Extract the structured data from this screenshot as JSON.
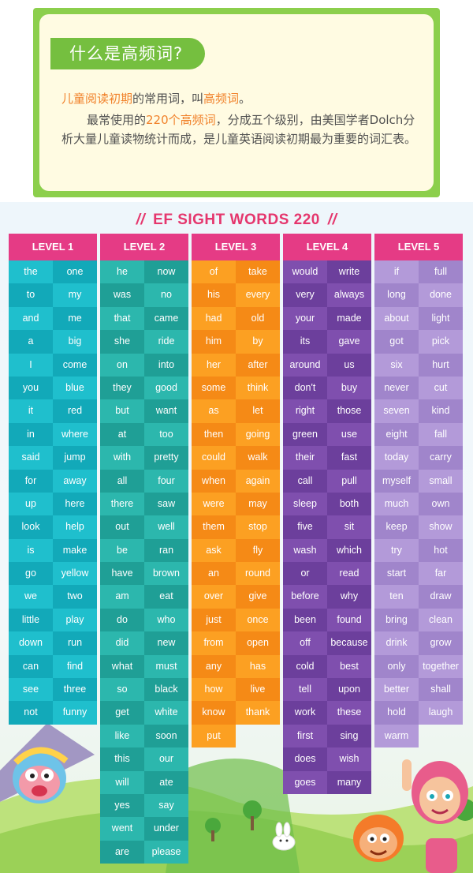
{
  "info": {
    "title": "什么是高频词?",
    "p1": {
      "a": "儿童阅读初期",
      "b": "的常用词，叫",
      "c": "高频词",
      "d": "。"
    },
    "p2": {
      "a": "最常使用的",
      "b": "220个高频词",
      "c": "，分成五个级别，由美国学者Dolch分析大量儿童读物统计而成，是儿童英语阅读初期最为重要的词汇表。"
    }
  },
  "poster": {
    "slash_left": "//",
    "title": "EF SIGHT WORDS 220",
    "slash_right": "//"
  },
  "colors": {
    "header": "#e53b85",
    "level1": "#1fbfcd",
    "level2": "#2cb7ad",
    "level3": "#fca022",
    "level4": "#7f4fae",
    "level5": "#b39ad9",
    "highlight": "#f1822b"
  },
  "levels": [
    {
      "name": "LEVEL 1",
      "rows": [
        [
          "the",
          "one"
        ],
        [
          "to",
          "my"
        ],
        [
          "and",
          "me"
        ],
        [
          "a",
          "big"
        ],
        [
          "I",
          "come"
        ],
        [
          "you",
          "blue"
        ],
        [
          "it",
          "red"
        ],
        [
          "in",
          "where"
        ],
        [
          "said",
          "jump"
        ],
        [
          "for",
          "away"
        ],
        [
          "up",
          "here"
        ],
        [
          "look",
          "help"
        ],
        [
          "is",
          "make"
        ],
        [
          "go",
          "yellow"
        ],
        [
          "we",
          "two"
        ],
        [
          "little",
          "play"
        ],
        [
          "down",
          "run"
        ],
        [
          "can",
          "find"
        ],
        [
          "see",
          "three"
        ],
        [
          "not",
          "funny"
        ]
      ]
    },
    {
      "name": "LEVEL 2",
      "rows": [
        [
          "he",
          "now"
        ],
        [
          "was",
          "no"
        ],
        [
          "that",
          "came"
        ],
        [
          "she",
          "ride"
        ],
        [
          "on",
          "into"
        ],
        [
          "they",
          "good"
        ],
        [
          "but",
          "want"
        ],
        [
          "at",
          "too"
        ],
        [
          "with",
          "pretty"
        ],
        [
          "all",
          "four"
        ],
        [
          "there",
          "saw"
        ],
        [
          "out",
          "well"
        ],
        [
          "be",
          "ran"
        ],
        [
          "have",
          "brown"
        ],
        [
          "am",
          "eat"
        ],
        [
          "do",
          "who"
        ],
        [
          "did",
          "new"
        ],
        [
          "what",
          "must"
        ],
        [
          "so",
          "black"
        ],
        [
          "get",
          "white"
        ],
        [
          "like",
          "soon"
        ],
        [
          "this",
          "our"
        ],
        [
          "will",
          "ate"
        ],
        [
          "yes",
          "say"
        ],
        [
          "went",
          "under"
        ],
        [
          "are",
          "please"
        ]
      ]
    },
    {
      "name": "LEVEL 3",
      "rows": [
        [
          "of",
          "take"
        ],
        [
          "his",
          "every"
        ],
        [
          "had",
          "old"
        ],
        [
          "him",
          "by"
        ],
        [
          "her",
          "after"
        ],
        [
          "some",
          "think"
        ],
        [
          "as",
          "let"
        ],
        [
          "then",
          "going"
        ],
        [
          "could",
          "walk"
        ],
        [
          "when",
          "again"
        ],
        [
          "were",
          "may"
        ],
        [
          "them",
          "stop"
        ],
        [
          "ask",
          "fly"
        ],
        [
          "an",
          "round"
        ],
        [
          "over",
          "give"
        ],
        [
          "just",
          "once"
        ],
        [
          "from",
          "open"
        ],
        [
          "any",
          "has"
        ],
        [
          "how",
          "live"
        ],
        [
          "know",
          "thank"
        ],
        [
          "put",
          ""
        ]
      ]
    },
    {
      "name": "LEVEL 4",
      "rows": [
        [
          "would",
          "write"
        ],
        [
          "very",
          "always"
        ],
        [
          "your",
          "made"
        ],
        [
          "its",
          "gave"
        ],
        [
          "around",
          "us"
        ],
        [
          "don't",
          "buy"
        ],
        [
          "right",
          "those"
        ],
        [
          "green",
          "use"
        ],
        [
          "their",
          "fast"
        ],
        [
          "call",
          "pull"
        ],
        [
          "sleep",
          "both"
        ],
        [
          "five",
          "sit"
        ],
        [
          "wash",
          "which"
        ],
        [
          "or",
          "read"
        ],
        [
          "before",
          "why"
        ],
        [
          "been",
          "found"
        ],
        [
          "off",
          "because"
        ],
        [
          "cold",
          "best"
        ],
        [
          "tell",
          "upon"
        ],
        [
          "work",
          "these"
        ],
        [
          "first",
          "sing"
        ],
        [
          "does",
          "wish"
        ],
        [
          "goes",
          "many"
        ]
      ]
    },
    {
      "name": "LEVEL 5",
      "rows": [
        [
          "if",
          "full"
        ],
        [
          "long",
          "done"
        ],
        [
          "about",
          "light"
        ],
        [
          "got",
          "pick"
        ],
        [
          "six",
          "hurt"
        ],
        [
          "never",
          "cut"
        ],
        [
          "seven",
          "kind"
        ],
        [
          "eight",
          "fall"
        ],
        [
          "today",
          "carry"
        ],
        [
          "myself",
          "small"
        ],
        [
          "much",
          "own"
        ],
        [
          "keep",
          "show"
        ],
        [
          "try",
          "hot"
        ],
        [
          "start",
          "far"
        ],
        [
          "ten",
          "draw"
        ],
        [
          "bring",
          "clean"
        ],
        [
          "drink",
          "grow"
        ],
        [
          "only",
          "together"
        ],
        [
          "better",
          "shall"
        ],
        [
          "hold",
          "laugh"
        ],
        [
          "warm",
          ""
        ]
      ]
    }
  ]
}
